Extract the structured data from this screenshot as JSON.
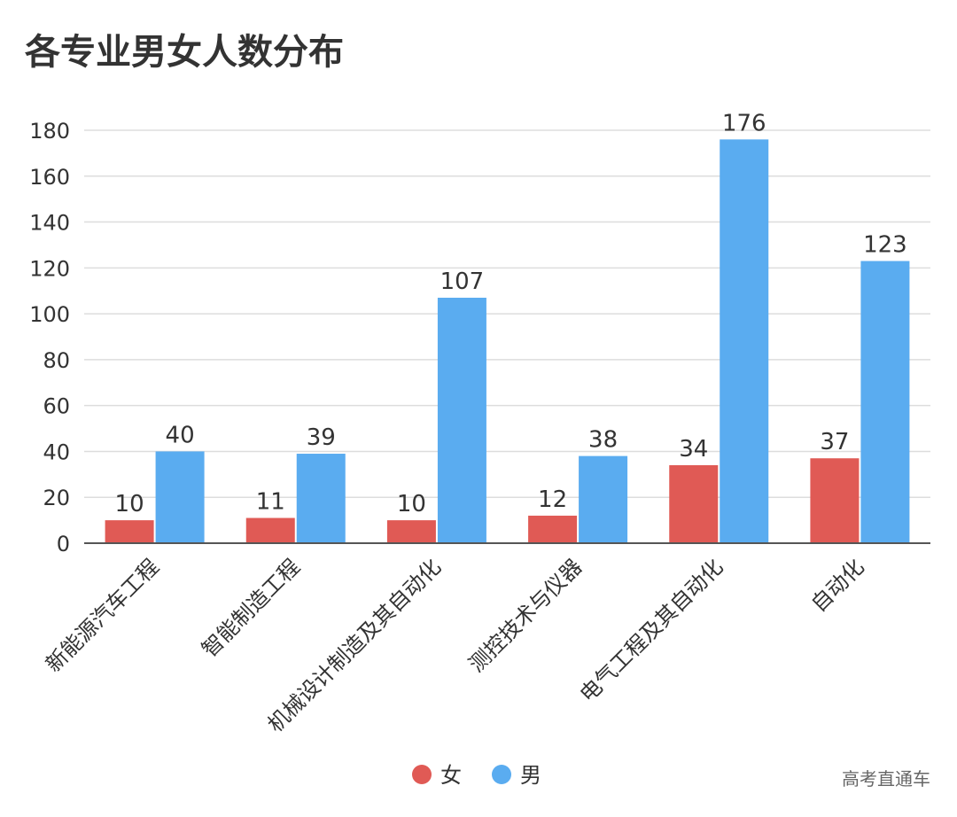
{
  "chart_data": {
    "type": "bar",
    "title": "各专业男女人数分布",
    "categories": [
      "新能源汽车工程",
      "智能制造工程",
      "机械设计制造及其自动化",
      "测控技术与仪器",
      "电气工程及其自动化",
      "自动化"
    ],
    "series": [
      {
        "name": "女",
        "color": "#e05a55",
        "values": [
          10,
          11,
          10,
          12,
          34,
          37
        ]
      },
      {
        "name": "男",
        "color": "#5aacf0",
        "values": [
          40,
          39,
          107,
          38,
          176,
          123
        ]
      }
    ],
    "ylim": [
      0,
      180
    ],
    "yticks": [
      0,
      20,
      40,
      60,
      80,
      100,
      120,
      140,
      160,
      180
    ],
    "grid": true,
    "legend": "bottom",
    "source": "高考直通车"
  }
}
